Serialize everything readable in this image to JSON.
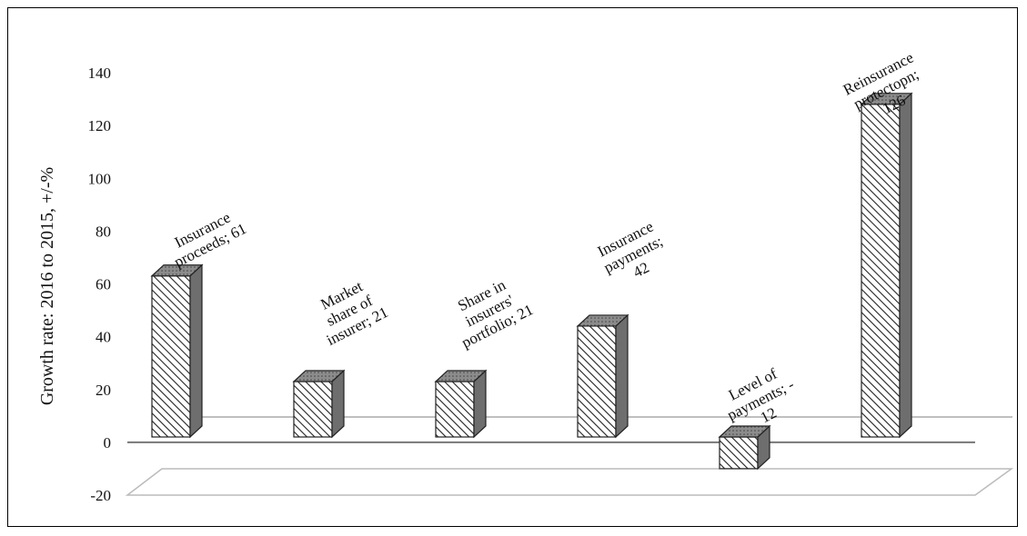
{
  "chart_data": {
    "type": "bar",
    "style": "3d-column",
    "categories": [
      "Insurance proceeds",
      "Market share of insurer",
      "Share in insurers' portfolio",
      "Insurance payments",
      "Level of payments",
      "Reinsurance protectopn"
    ],
    "values": [
      61,
      21,
      21,
      42,
      -12,
      126
    ],
    "data_labels": [
      [
        "Insurance",
        "proceeds; 61"
      ],
      [
        "Market",
        "share of",
        "insurer; 21"
      ],
      [
        "Share in",
        "insurers'",
        "portfolio; 21"
      ],
      [
        "Insurance",
        "payments;",
        "42"
      ],
      [
        "Level of",
        "payments; -",
        "12"
      ],
      [
        "Reinsurance",
        "protectopn;",
        "126"
      ]
    ],
    "ylabel": "Growth rate: 2016 to 2015, +/-%",
    "ylim": [
      -20,
      140
    ],
    "yticks": [
      140,
      120,
      100,
      80,
      60,
      40,
      20,
      0,
      -20
    ],
    "colors": {
      "bar_front": "#ffffff",
      "bar_side": "#6e6e6e",
      "bar_top": "#8c8c8c",
      "hatch": "#222222"
    }
  }
}
